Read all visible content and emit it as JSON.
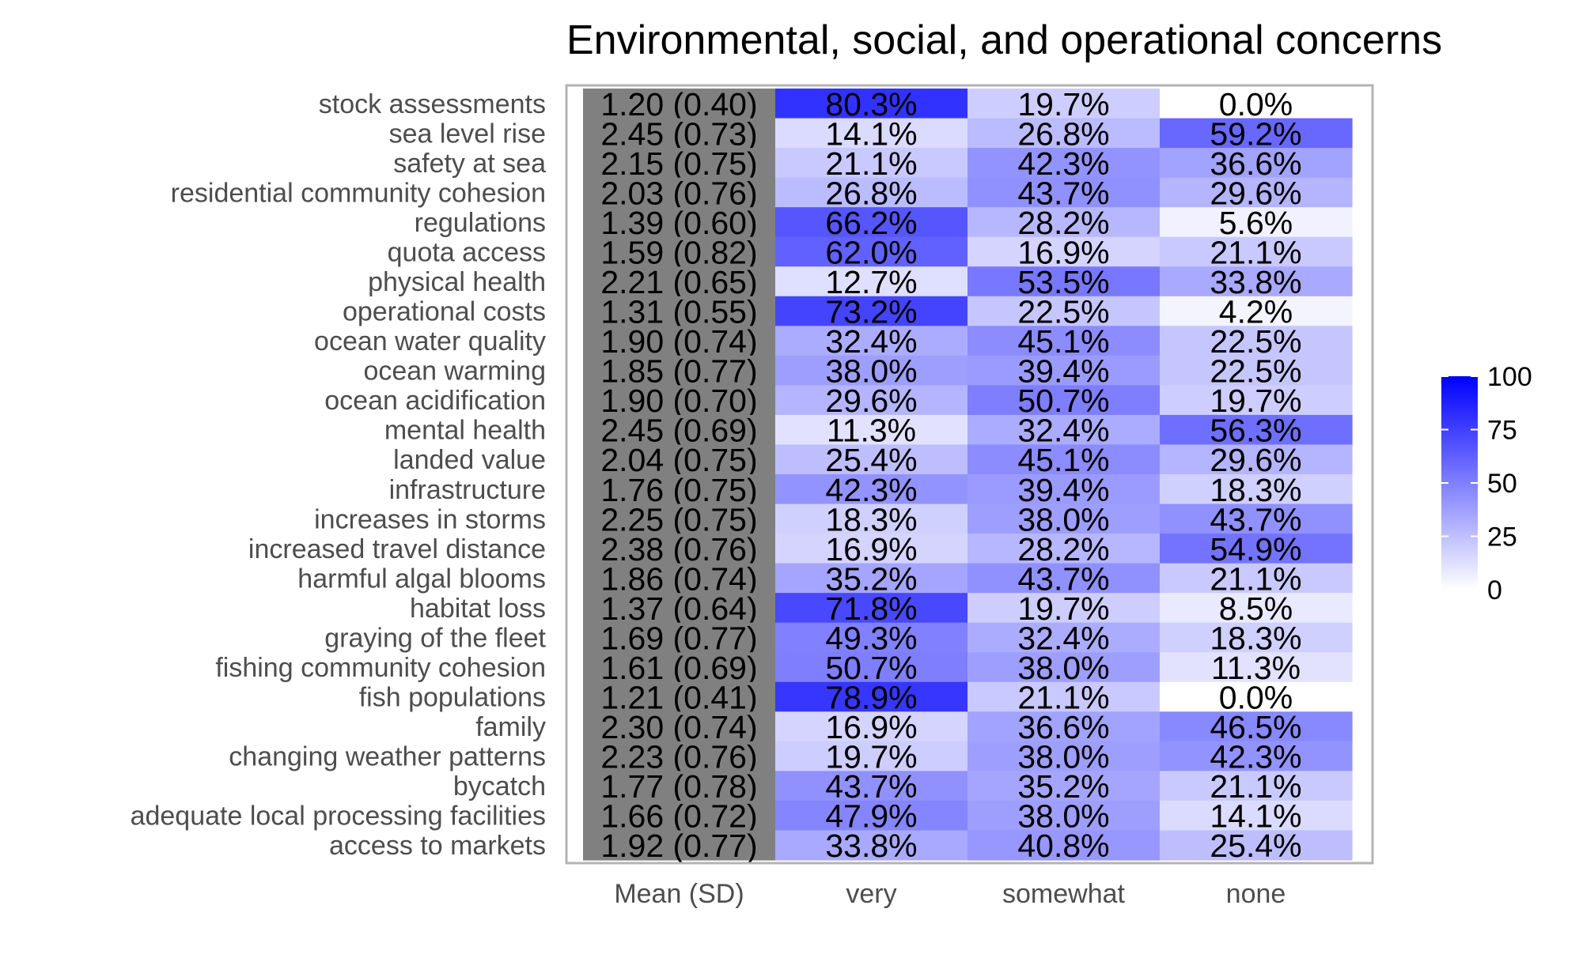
{
  "chart_data": {
    "type": "heatmap",
    "title": "Environmental, social, and operational concerns",
    "columns": [
      "Mean (SD)",
      "very",
      "somewhat",
      "none"
    ],
    "rows": [
      {
        "label": "stock assessments",
        "mean_sd": "1.20 (0.40)",
        "values": [
          80.3,
          19.7,
          0.0
        ]
      },
      {
        "label": "sea level rise",
        "mean_sd": "2.45 (0.73)",
        "values": [
          14.1,
          26.8,
          59.2
        ]
      },
      {
        "label": "safety at sea",
        "mean_sd": "2.15 (0.75)",
        "values": [
          21.1,
          42.3,
          36.6
        ]
      },
      {
        "label": "residential community cohesion",
        "mean_sd": "2.03 (0.76)",
        "values": [
          26.8,
          43.7,
          29.6
        ]
      },
      {
        "label": "regulations",
        "mean_sd": "1.39 (0.60)",
        "values": [
          66.2,
          28.2,
          5.6
        ]
      },
      {
        "label": "quota access",
        "mean_sd": "1.59 (0.82)",
        "values": [
          62.0,
          16.9,
          21.1
        ]
      },
      {
        "label": "physical health",
        "mean_sd": "2.21 (0.65)",
        "values": [
          12.7,
          53.5,
          33.8
        ]
      },
      {
        "label": "operational costs",
        "mean_sd": "1.31 (0.55)",
        "values": [
          73.2,
          22.5,
          4.2
        ]
      },
      {
        "label": "ocean water quality",
        "mean_sd": "1.90 (0.74)",
        "values": [
          32.4,
          45.1,
          22.5
        ]
      },
      {
        "label": "ocean warming",
        "mean_sd": "1.85 (0.77)",
        "values": [
          38.0,
          39.4,
          22.5
        ]
      },
      {
        "label": "ocean acidification",
        "mean_sd": "1.90 (0.70)",
        "values": [
          29.6,
          50.7,
          19.7
        ]
      },
      {
        "label": "mental health",
        "mean_sd": "2.45 (0.69)",
        "values": [
          11.3,
          32.4,
          56.3
        ]
      },
      {
        "label": "landed value",
        "mean_sd": "2.04 (0.75)",
        "values": [
          25.4,
          45.1,
          29.6
        ]
      },
      {
        "label": "infrastructure",
        "mean_sd": "1.76 (0.75)",
        "values": [
          42.3,
          39.4,
          18.3
        ]
      },
      {
        "label": "increases in storms",
        "mean_sd": "2.25 (0.75)",
        "values": [
          18.3,
          38.0,
          43.7
        ]
      },
      {
        "label": "increased travel distance",
        "mean_sd": "2.38 (0.76)",
        "values": [
          16.9,
          28.2,
          54.9
        ]
      },
      {
        "label": "harmful algal blooms",
        "mean_sd": "1.86 (0.74)",
        "values": [
          35.2,
          43.7,
          21.1
        ]
      },
      {
        "label": "habitat loss",
        "mean_sd": "1.37 (0.64)",
        "values": [
          71.8,
          19.7,
          8.5
        ]
      },
      {
        "label": "graying of the fleet",
        "mean_sd": "1.69 (0.77)",
        "values": [
          49.3,
          32.4,
          18.3
        ]
      },
      {
        "label": "fishing community cohesion",
        "mean_sd": "1.61 (0.69)",
        "values": [
          50.7,
          38.0,
          11.3
        ]
      },
      {
        "label": "fish populations",
        "mean_sd": "1.21 (0.41)",
        "values": [
          78.9,
          21.1,
          0.0
        ]
      },
      {
        "label": "family",
        "mean_sd": "2.30 (0.74)",
        "values": [
          16.9,
          36.6,
          46.5
        ]
      },
      {
        "label": "changing weather patterns",
        "mean_sd": "2.23 (0.76)",
        "values": [
          19.7,
          38.0,
          42.3
        ]
      },
      {
        "label": "bycatch",
        "mean_sd": "1.77 (0.78)",
        "values": [
          43.7,
          35.2,
          21.1
        ]
      },
      {
        "label": "adequate local processing facilities",
        "mean_sd": "1.66 (0.72)",
        "values": [
          47.9,
          38.0,
          14.1
        ]
      },
      {
        "label": "access to markets",
        "mean_sd": "1.92 (0.77)",
        "values": [
          33.8,
          40.8,
          25.4
        ]
      }
    ],
    "color_scale": {
      "min": 0,
      "max": 100,
      "low_color": "#ffffff",
      "high_color": "#0000ff",
      "ticks": [
        100,
        75,
        50,
        25,
        0
      ]
    },
    "mean_column_color": "#808080",
    "panel_border_color": "#b3b3b3",
    "value_suffix": "%",
    "legend_position": "right"
  }
}
